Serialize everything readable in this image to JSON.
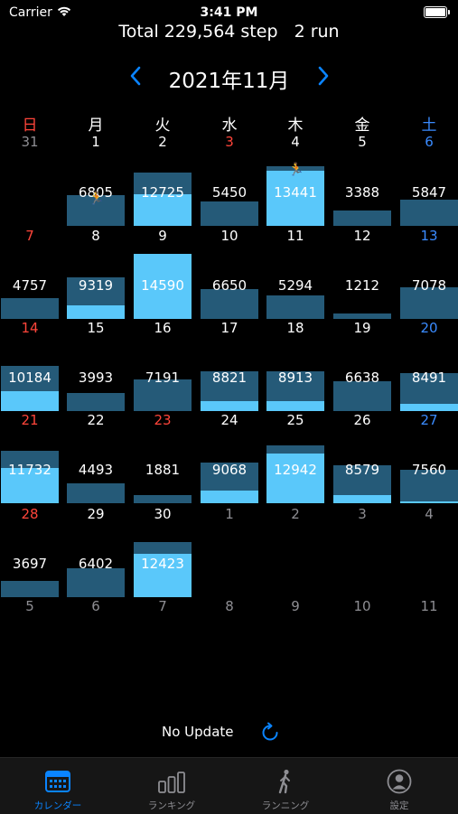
{
  "status_bar": {
    "carrier": "Carrier",
    "time": "3:41 PM"
  },
  "summary": {
    "total_steps": "Total 229,564 step",
    "runs": "2 run"
  },
  "month": {
    "title": "2021年11月"
  },
  "weekdays": [
    "日",
    "月",
    "火",
    "水",
    "木",
    "金",
    "土"
  ],
  "colors": {
    "accent": "#0a84ff",
    "sunday": "#ff453a",
    "saturday": "#3a8bff",
    "bar_bg": "#255a78",
    "bar_fill": "#5ac8fa"
  },
  "weeks": [
    [
      {
        "day": "31",
        "dim": true
      },
      {
        "day": "1",
        "steps": "6805",
        "fill": 0,
        "run": true
      },
      {
        "day": "2",
        "steps": "12725",
        "fill": 0.6,
        "frac": 0.82
      },
      {
        "day": "3",
        "steps": "5450",
        "fill": 0,
        "holiday": true
      },
      {
        "day": "4",
        "steps": "13441",
        "fill": 0.92,
        "run": true
      },
      {
        "day": "5",
        "steps": "3388",
        "fill": 0
      },
      {
        "day": "6",
        "steps": "5847",
        "fill": 0
      }
    ],
    [
      {
        "day": "7",
        "steps": "4757",
        "fill": 0
      },
      {
        "day": "8",
        "steps": "9319",
        "fill": 0.33
      },
      {
        "day": "9",
        "steps": "14590",
        "fill": 1.0
      },
      {
        "day": "10",
        "steps": "6650",
        "fill": 0
      },
      {
        "day": "11",
        "steps": "5294",
        "fill": 0
      },
      {
        "day": "12",
        "steps": "1212",
        "fill": 0
      },
      {
        "day": "13",
        "steps": "7078",
        "fill": 0
      }
    ],
    [
      {
        "day": "14",
        "steps": "10184",
        "fill": 0.44
      },
      {
        "day": "15",
        "steps": "3993",
        "fill": 0
      },
      {
        "day": "16",
        "steps": "7191",
        "fill": 0
      },
      {
        "day": "17",
        "steps": "8821",
        "fill": 0.24
      },
      {
        "day": "18",
        "steps": "8913",
        "fill": 0.26
      },
      {
        "day": "19",
        "steps": "6638",
        "fill": 0
      },
      {
        "day": "20",
        "steps": "8491",
        "fill": 0.2
      }
    ],
    [
      {
        "day": "21",
        "steps": "11732",
        "fill": 0.68
      },
      {
        "day": "22",
        "steps": "4493",
        "fill": 0
      },
      {
        "day": "23",
        "steps": "1881",
        "fill": 0,
        "holiday": true
      },
      {
        "day": "24",
        "steps": "9068",
        "fill": 0.3
      },
      {
        "day": "25",
        "steps": "12942",
        "fill": 0.86
      },
      {
        "day": "26",
        "steps": "8579",
        "fill": 0.22
      },
      {
        "day": "27",
        "steps": "7560",
        "fill": 0.06
      }
    ],
    [
      {
        "day": "28",
        "steps": "3697",
        "fill": 0
      },
      {
        "day": "29",
        "steps": "6402",
        "fill": 0
      },
      {
        "day": "30",
        "steps": "12423",
        "fill": 0.78
      },
      {
        "day": "1",
        "dim": true
      },
      {
        "day": "2",
        "dim": true
      },
      {
        "day": "3",
        "dim": true
      },
      {
        "day": "4",
        "dim": true
      }
    ],
    [
      {
        "day": "5",
        "dim": true
      },
      {
        "day": "6",
        "dim": true
      },
      {
        "day": "7",
        "dim": true
      },
      {
        "day": "8",
        "dim": true
      },
      {
        "day": "9",
        "dim": true
      },
      {
        "day": "10",
        "dim": true
      },
      {
        "day": "11",
        "dim": true
      }
    ]
  ],
  "footer": {
    "update_text": "No Update"
  },
  "tabs": [
    {
      "label": "カレンダー",
      "icon": "calendar-icon",
      "active": true
    },
    {
      "label": "ランキング",
      "icon": "bar-chart-icon",
      "active": false
    },
    {
      "label": "ランニング",
      "icon": "runner-icon",
      "active": false
    },
    {
      "label": "設定",
      "icon": "person-circle-icon",
      "active": false
    }
  ]
}
